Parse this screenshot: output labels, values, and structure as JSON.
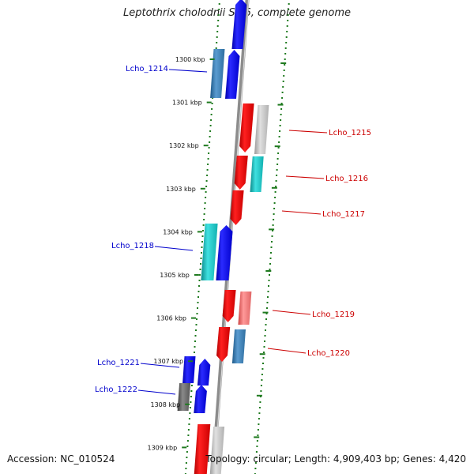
{
  "title": "Leptothrix cholodnii SP-6, complete genome",
  "accession": "Accession: NC_010524",
  "topology": "Topology: circular; Length: 4,909,403 bp; Genes: 4,420",
  "colors": {
    "backbone": "#8c8c8c",
    "backbone_highlight": "#d9d9d9",
    "guide_dots": "#1f7a1f",
    "plus_label": "#0000cc",
    "minus_label": "#cc0000"
  },
  "ticks": [
    "1300 kbp",
    "1301 kbp",
    "1302 kbp",
    "1303 kbp",
    "1304 kbp",
    "1305 kbp",
    "1306 kbp",
    "1307 kbp",
    "1308 kbp",
    "1309 kbp"
  ],
  "genes": [
    {
      "name": "Lcho_1214",
      "strand": "+"
    },
    {
      "name": "Lcho_1215",
      "strand": "-"
    },
    {
      "name": "Lcho_1216",
      "strand": "-"
    },
    {
      "name": "Lcho_1217",
      "strand": "-"
    },
    {
      "name": "Lcho_1218",
      "strand": "+"
    },
    {
      "name": "Lcho_1219",
      "strand": "-"
    },
    {
      "name": "Lcho_1220",
      "strand": "-"
    },
    {
      "name": "Lcho_1221",
      "strand": "+"
    },
    {
      "name": "Lcho_1222",
      "strand": "+"
    }
  ]
}
